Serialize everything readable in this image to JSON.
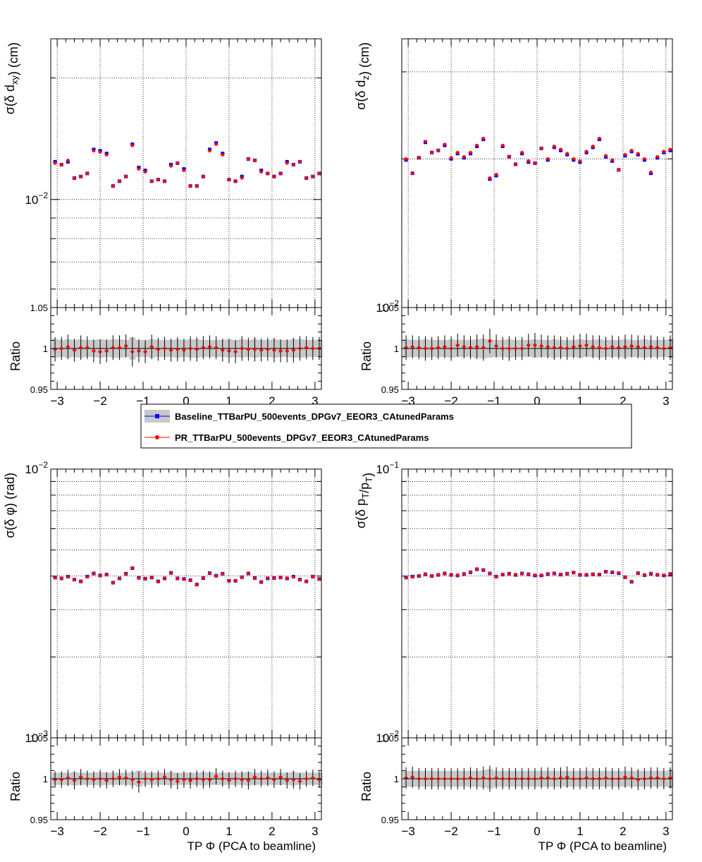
{
  "legend": {
    "entries": [
      {
        "label": "Baseline_TTBarPU_500events_DPGv7_EEOR3_CAtunedParams",
        "color": "#0000ff",
        "marker": "square"
      },
      {
        "label": "PR_TTBarPU_500events_DPGv7_EEOR3_CAtunedParams",
        "color": "#ff0000",
        "marker": "circle"
      }
    ]
  },
  "colors": {
    "baseline": "#0000ff",
    "pr": "#ff0000",
    "band": "#c8c8c8",
    "grid": "#000000"
  },
  "chart_data": [
    {
      "id": "dxy",
      "type": "scatter",
      "ylabel": "σ(δ d_xy) (cm)",
      "xlabel": "",
      "yscale": "log",
      "ylim": [
        0.0054,
        0.025
      ],
      "xlim": [
        -3.15,
        3.15
      ],
      "ytick_labels": [
        "10^−2"
      ],
      "xtick_labels": [
        "−3",
        "−2",
        "−1",
        "0",
        "1",
        "2",
        "3"
      ],
      "grid": true,
      "x": [
        -3.05,
        -2.9,
        -2.75,
        -2.6,
        -2.45,
        -2.3,
        -2.15,
        -2.0,
        -1.85,
        -1.7,
        -1.55,
        -1.4,
        -1.25,
        -1.1,
        -0.95,
        -0.8,
        -0.65,
        -0.5,
        -0.35,
        -0.2,
        -0.05,
        0.1,
        0.25,
        0.4,
        0.55,
        0.7,
        0.85,
        1.0,
        1.15,
        1.3,
        1.45,
        1.6,
        1.75,
        1.9,
        2.05,
        2.2,
        2.35,
        2.5,
        2.65,
        2.8,
        2.95,
        3.1
      ],
      "series": [
        {
          "name": "Baseline_TTBarPU_500events_DPGv7_EEOR3_CAtunedParams",
          "values": [
            0.0124,
            0.0122,
            0.0124,
            0.0113,
            0.0114,
            0.0116,
            0.0133,
            0.0132,
            0.013,
            0.0108,
            0.0111,
            0.0114,
            0.0137,
            0.012,
            0.0118,
            0.0111,
            0.0112,
            0.0111,
            0.0122,
            0.0123,
            0.0119,
            0.0108,
            0.0108,
            0.0114,
            0.0133,
            0.0138,
            0.013,
            0.0112,
            0.0111,
            0.0114,
            0.0126,
            0.0125,
            0.0118,
            0.0116,
            0.0114,
            0.0116,
            0.0124,
            0.0122,
            0.0124,
            0.0113,
            0.0114,
            0.0116
          ]
        },
        {
          "name": "PR_TTBarPU_500events_DPGv7_EEOR3_CAtunedParams",
          "values": [
            0.0123,
            0.0122,
            0.0125,
            0.0113,
            0.0114,
            0.0116,
            0.0132,
            0.0131,
            0.0129,
            0.0108,
            0.0111,
            0.0114,
            0.0136,
            0.0119,
            0.0117,
            0.0111,
            0.0112,
            0.0111,
            0.0121,
            0.0123,
            0.0118,
            0.0108,
            0.0108,
            0.0114,
            0.0132,
            0.0137,
            0.0129,
            0.0112,
            0.0111,
            0.0113,
            0.0126,
            0.0125,
            0.0117,
            0.0116,
            0.0114,
            0.0116,
            0.0123,
            0.0122,
            0.0124,
            0.0113,
            0.0114,
            0.0116
          ]
        }
      ],
      "ratio": {
        "ylabel": "Ratio",
        "ylim": [
          0.95,
          1.05
        ],
        "ytick_labels": [
          "0.95",
          "1",
          "1.05"
        ],
        "values": [
          0.999,
          1.0,
          1.002,
          0.998,
          1.001,
          1.001,
          0.997,
          0.996,
          0.997,
          1.001,
          1.001,
          1.003,
          0.996,
          0.997,
          0.996,
          1.002,
          0.999,
          1.0,
          0.998,
          0.999,
          0.998,
          1.0,
          0.999,
          1.001,
          1.002,
          1.001,
          0.998,
          0.997,
          0.996,
          1.0,
          0.999,
          0.999,
          0.998,
          0.999,
          0.998,
          0.997,
          0.997,
          0.998,
          1.0,
          1.001,
          1.0,
          1.0
        ],
        "errors": [
          0.015,
          0.014,
          0.015,
          0.014,
          0.015,
          0.014,
          0.014,
          0.015,
          0.014,
          0.015,
          0.015,
          0.014,
          0.018,
          0.014,
          0.014,
          0.015,
          0.014,
          0.014,
          0.014,
          0.015,
          0.014,
          0.015,
          0.015,
          0.014,
          0.014,
          0.014,
          0.014,
          0.015,
          0.014,
          0.015,
          0.014,
          0.015,
          0.014,
          0.014,
          0.015,
          0.014,
          0.014,
          0.015,
          0.015,
          0.014,
          0.014,
          0.014
        ]
      }
    },
    {
      "id": "dz",
      "type": "scatter",
      "ylabel": "σ(δ d_z) (cm)",
      "xlabel": "",
      "yscale": "log",
      "ylim": [
        0.01,
        0.035
      ],
      "xlim": [
        -3.15,
        3.15
      ],
      "ytick_labels": [
        "10^−2"
      ],
      "xtick_labels": [
        "−3",
        "−2",
        "−1",
        "0",
        "1",
        "2",
        "3"
      ],
      "grid": true,
      "x": [
        -3.05,
        -2.9,
        -2.75,
        -2.6,
        -2.45,
        -2.3,
        -2.15,
        -2.0,
        -1.85,
        -1.7,
        -1.55,
        -1.4,
        -1.25,
        -1.1,
        -0.95,
        -0.8,
        -0.65,
        -0.5,
        -0.35,
        -0.2,
        -0.05,
        0.1,
        0.25,
        0.4,
        0.55,
        0.7,
        0.85,
        1.0,
        1.15,
        1.3,
        1.45,
        1.6,
        1.75,
        1.9,
        2.05,
        2.2,
        2.35,
        2.5,
        2.65,
        2.8,
        2.95,
        3.1
      ],
      "series": [
        {
          "name": "Baseline_TTBarPU_500events_DPGv7_EEOR3_CAtunedParams",
          "values": [
            0.0199,
            0.0187,
            0.0201,
            0.0216,
            0.0206,
            0.0208,
            0.0213,
            0.02,
            0.0205,
            0.0201,
            0.0205,
            0.0212,
            0.0219,
            0.0182,
            0.0185,
            0.0212,
            0.0202,
            0.0195,
            0.0205,
            0.0197,
            0.0196,
            0.021,
            0.0199,
            0.0211,
            0.0208,
            0.0204,
            0.0199,
            0.0197,
            0.0206,
            0.0211,
            0.0219,
            0.0202,
            0.0198,
            0.019,
            0.0203,
            0.0207,
            0.0204,
            0.0199,
            0.0187,
            0.0201,
            0.0206,
            0.0208
          ]
        },
        {
          "name": "PR_TTBarPU_500events_DPGv7_EEOR3_CAtunedParams",
          "values": [
            0.02,
            0.0187,
            0.0201,
            0.0217,
            0.0206,
            0.0208,
            0.0214,
            0.0201,
            0.0206,
            0.0202,
            0.0206,
            0.0213,
            0.022,
            0.0183,
            0.0186,
            0.0213,
            0.0202,
            0.0195,
            0.0206,
            0.0198,
            0.0196,
            0.021,
            0.02,
            0.0212,
            0.0209,
            0.0205,
            0.02,
            0.0198,
            0.0207,
            0.0212,
            0.022,
            0.0203,
            0.0199,
            0.019,
            0.0204,
            0.0208,
            0.0205,
            0.02,
            0.0188,
            0.0202,
            0.0207,
            0.0209
          ]
        }
      ],
      "ratio": {
        "ylabel": "Ratio",
        "ylim": [
          0.95,
          1.05
        ],
        "ytick_labels": [
          "0.95",
          "1",
          "1.05"
        ],
        "values": [
          1.001,
          1.002,
          1.001,
          1.0,
          1.0,
          1.001,
          1.002,
          1.0,
          1.004,
          1.002,
          1.001,
          1.002,
          1.001,
          1.009,
          1.003,
          1.0,
          1.0,
          1.0,
          1.0,
          1.004,
          1.004,
          1.003,
          1.002,
          1.001,
          1.001,
          1.0,
          1.002,
          1.003,
          1.004,
          1.002,
          1.001,
          1.0,
          1.002,
          1.001,
          1.002,
          1.003,
          1.002,
          1.001,
          1.002,
          1.001,
          1.0,
          1.001
        ],
        "errors": [
          0.015,
          0.014,
          0.014,
          0.015,
          0.014,
          0.014,
          0.014,
          0.015,
          0.014,
          0.014,
          0.014,
          0.015,
          0.016,
          0.015,
          0.014,
          0.014,
          0.015,
          0.014,
          0.014,
          0.014,
          0.015,
          0.014,
          0.014,
          0.015,
          0.014,
          0.014,
          0.014,
          0.015,
          0.014,
          0.014,
          0.015,
          0.014,
          0.014,
          0.014,
          0.015,
          0.014,
          0.014,
          0.015,
          0.014,
          0.014,
          0.014,
          0.015
        ]
      }
    },
    {
      "id": "phi",
      "type": "scatter",
      "ylabel": "σ(δ φ) (rad)",
      "xlabel": "TP Φ (PCA to beamline)",
      "yscale": "log",
      "ylim": [
        0.001,
        0.01
      ],
      "xlim": [
        -3.15,
        3.15
      ],
      "ytick_labels": [
        "10^−3",
        "10^−2"
      ],
      "xtick_labels": [
        "−3",
        "−2",
        "−1",
        "0",
        "1",
        "2",
        "3"
      ],
      "grid": true,
      "x": [
        -3.05,
        -2.9,
        -2.75,
        -2.6,
        -2.45,
        -2.3,
        -2.15,
        -2.0,
        -1.85,
        -1.7,
        -1.55,
        -1.4,
        -1.25,
        -1.1,
        -0.95,
        -0.8,
        -0.65,
        -0.5,
        -0.35,
        -0.2,
        -0.05,
        0.1,
        0.25,
        0.4,
        0.55,
        0.7,
        0.85,
        1.0,
        1.15,
        1.3,
        1.45,
        1.6,
        1.75,
        1.9,
        2.05,
        2.2,
        2.35,
        2.5,
        2.65,
        2.8,
        2.95,
        3.1
      ],
      "series": [
        {
          "name": "Baseline_TTBarPU_500events_DPGv7_EEOR3_CAtunedParams",
          "values": [
            0.00395,
            0.00392,
            0.00398,
            0.00388,
            0.00382,
            0.00398,
            0.00409,
            0.00402,
            0.00405,
            0.00378,
            0.00392,
            0.00408,
            0.00428,
            0.00394,
            0.00391,
            0.00395,
            0.00382,
            0.00392,
            0.00411,
            0.00392,
            0.0039,
            0.00386,
            0.00372,
            0.00393,
            0.0041,
            0.00401,
            0.00408,
            0.00384,
            0.00384,
            0.00396,
            0.00409,
            0.00393,
            0.0038,
            0.00392,
            0.00393,
            0.00395,
            0.00392,
            0.00398,
            0.00388,
            0.00382,
            0.00398,
            0.0039
          ]
        },
        {
          "name": "PR_TTBarPU_500events_DPGv7_EEOR3_CAtunedParams",
          "values": [
            0.00394,
            0.00392,
            0.00398,
            0.00388,
            0.00381,
            0.00397,
            0.0041,
            0.00401,
            0.00404,
            0.00378,
            0.00392,
            0.00407,
            0.00429,
            0.00393,
            0.00391,
            0.00395,
            0.00381,
            0.00392,
            0.0041,
            0.00392,
            0.00389,
            0.00385,
            0.00372,
            0.00394,
            0.00409,
            0.004,
            0.00408,
            0.00383,
            0.00384,
            0.00396,
            0.0041,
            0.00392,
            0.0038,
            0.00393,
            0.00392,
            0.00395,
            0.00393,
            0.00397,
            0.00387,
            0.00382,
            0.00398,
            0.00389
          ]
        }
      ],
      "ratio": {
        "ylabel": "Ratio",
        "ylim": [
          0.95,
          1.05
        ],
        "ytick_labels": [
          "0.95",
          "1",
          "1.05"
        ],
        "values": [
          0.999,
          0.999,
          1.001,
          0.998,
          1.002,
          1.0,
          0.999,
          1.0,
          0.998,
          1.0,
          1.002,
          1.001,
          0.999,
          0.996,
          1.0,
          0.999,
          1.0,
          1.002,
          0.999,
          0.997,
          0.999,
          0.998,
          1.0,
          0.999,
          0.999,
          1.003,
          1.0,
          0.998,
          1.0,
          0.999,
          0.998,
          1.002,
          1.0,
          1.001,
          0.999,
          1.002,
          0.998,
          0.999,
          0.997,
          1.0,
          1.001,
          0.999
        ],
        "errors": [
          0.01,
          0.01,
          0.01,
          0.011,
          0.01,
          0.01,
          0.01,
          0.011,
          0.01,
          0.01,
          0.01,
          0.01,
          0.011,
          0.013,
          0.01,
          0.01,
          0.01,
          0.01,
          0.011,
          0.01,
          0.01,
          0.01,
          0.01,
          0.011,
          0.01,
          0.01,
          0.01,
          0.01,
          0.01,
          0.01,
          0.011,
          0.01,
          0.01,
          0.01,
          0.01,
          0.01,
          0.01,
          0.011,
          0.01,
          0.01,
          0.01,
          0.01
        ]
      }
    },
    {
      "id": "pt",
      "type": "scatter",
      "ylabel": "σ(δ p_T/p_T)",
      "xlabel": "TP Φ (PCA to beamline)",
      "yscale": "log",
      "ylim": [
        0.01,
        0.1
      ],
      "xlim": [
        -3.15,
        3.15
      ],
      "ytick_labels": [
        "10^−2",
        "10^−1"
      ],
      "xtick_labels": [
        "−3",
        "−2",
        "−1",
        "0",
        "1",
        "2",
        "3"
      ],
      "grid": true,
      "x": [
        -3.05,
        -2.9,
        -2.75,
        -2.6,
        -2.45,
        -2.3,
        -2.15,
        -2.0,
        -1.85,
        -1.7,
        -1.55,
        -1.4,
        -1.25,
        -1.1,
        -0.95,
        -0.8,
        -0.65,
        -0.5,
        -0.35,
        -0.2,
        -0.05,
        0.1,
        0.25,
        0.4,
        0.55,
        0.7,
        0.85,
        1.0,
        1.15,
        1.3,
        1.45,
        1.6,
        1.75,
        1.9,
        2.05,
        2.2,
        2.35,
        2.5,
        2.65,
        2.8,
        2.95,
        3.1
      ],
      "series": [
        {
          "name": "Baseline_TTBarPU_500events_DPGv7_EEOR3_CAtunedParams",
          "values": [
            0.0395,
            0.0398,
            0.04,
            0.0406,
            0.04,
            0.0404,
            0.0409,
            0.0404,
            0.0402,
            0.0407,
            0.0413,
            0.0424,
            0.0421,
            0.0409,
            0.0398,
            0.0405,
            0.0408,
            0.0404,
            0.0409,
            0.0406,
            0.0402,
            0.0402,
            0.0407,
            0.0409,
            0.0405,
            0.0408,
            0.0412,
            0.0404,
            0.0404,
            0.0406,
            0.0405,
            0.0415,
            0.0413,
            0.041,
            0.0396,
            0.0381,
            0.041,
            0.0403,
            0.0408,
            0.0404,
            0.0402,
            0.0407
          ]
        },
        {
          "name": "PR_TTBarPU_500events_DPGv7_EEOR3_CAtunedParams",
          "values": [
            0.0394,
            0.0397,
            0.04,
            0.0406,
            0.04,
            0.0404,
            0.041,
            0.0404,
            0.0402,
            0.0407,
            0.0414,
            0.0425,
            0.0422,
            0.0409,
            0.0398,
            0.0406,
            0.0408,
            0.0405,
            0.041,
            0.0406,
            0.0403,
            0.0402,
            0.0408,
            0.0409,
            0.0406,
            0.0408,
            0.0412,
            0.0404,
            0.0405,
            0.0406,
            0.0406,
            0.0415,
            0.0414,
            0.0411,
            0.0396,
            0.0382,
            0.041,
            0.0403,
            0.0409,
            0.0404,
            0.0402,
            0.0408
          ]
        }
      ],
      "ratio": {
        "ylabel": "Ratio",
        "ylim": [
          0.95,
          1.05
        ],
        "ytick_labels": [
          "0.95",
          "1",
          "1.05"
        ],
        "values": [
          1.001,
          1.002,
          1.0,
          1.0,
          1.0,
          1.0,
          1.0,
          1.0,
          1.0,
          1.0,
          1.001,
          1.0,
          1.001,
          1.0,
          1.001,
          1.0,
          1.0,
          1.0,
          1.0,
          1.0,
          1.0,
          1.001,
          1.001,
          1.0,
          1.001,
          1.002,
          1.0,
          1.0,
          1.001,
          1.0,
          1.0,
          1.001,
          1.0,
          1.0,
          1.002,
          1.001,
          0.999,
          1.0,
          1.001,
          1.001,
          1.0,
          1.001
        ],
        "errors": [
          0.013,
          0.013,
          0.013,
          0.013,
          0.013,
          0.013,
          0.013,
          0.013,
          0.013,
          0.013,
          0.013,
          0.013,
          0.014,
          0.016,
          0.013,
          0.013,
          0.013,
          0.013,
          0.013,
          0.013,
          0.013,
          0.013,
          0.013,
          0.013,
          0.013,
          0.013,
          0.013,
          0.013,
          0.013,
          0.013,
          0.013,
          0.013,
          0.013,
          0.013,
          0.013,
          0.013,
          0.013,
          0.013,
          0.013,
          0.013,
          0.013,
          0.013
        ]
      }
    }
  ]
}
